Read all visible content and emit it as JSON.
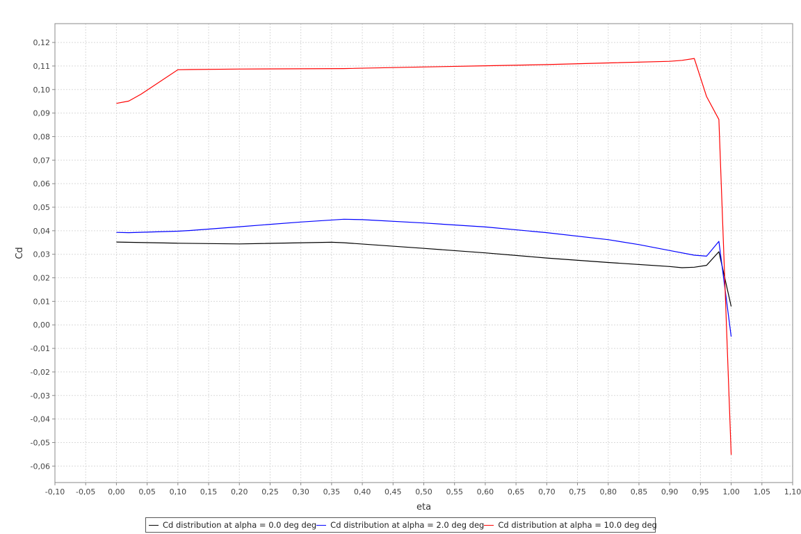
{
  "chart_data": {
    "type": "line",
    "title": "",
    "xlabel": "eta",
    "ylabel": "Cd",
    "xlim": [
      -0.1,
      1.1
    ],
    "ylim": [
      -0.067,
      0.128
    ],
    "x_ticks": [
      "-0,10",
      "-0,05",
      "0,00",
      "0,05",
      "0,10",
      "0,15",
      "0,20",
      "0,25",
      "0,30",
      "0,35",
      "0,40",
      "0,45",
      "0,50",
      "0,55",
      "0,60",
      "0,65",
      "0,70",
      "0,75",
      "0,80",
      "0,85",
      "0,90",
      "0,95",
      "1,00",
      "1,05",
      "1,10"
    ],
    "x_tick_values": [
      -0.1,
      -0.05,
      0.0,
      0.05,
      0.1,
      0.15,
      0.2,
      0.25,
      0.3,
      0.35,
      0.4,
      0.45,
      0.5,
      0.55,
      0.6,
      0.65,
      0.7,
      0.75,
      0.8,
      0.85,
      0.9,
      0.95,
      1.0,
      1.05,
      1.1
    ],
    "y_ticks": [
      "0,12",
      "0,11",
      "0,10",
      "0,09",
      "0,08",
      "0,07",
      "0,06",
      "0,05",
      "0,04",
      "0,03",
      "0,02",
      "0,01",
      "0,00",
      "-0,01",
      "-0,02",
      "-0,03",
      "-0,04",
      "-0,05",
      "-0,06"
    ],
    "y_tick_values": [
      0.12,
      0.11,
      0.1,
      0.09,
      0.08,
      0.07,
      0.06,
      0.05,
      0.04,
      0.03,
      0.02,
      0.01,
      0.0,
      -0.01,
      -0.02,
      -0.03,
      -0.04,
      -0.05,
      -0.06
    ],
    "grid": true,
    "legend_position": "bottom",
    "series": [
      {
        "name": "Cd distribution at alpha = 0.0 deg deg",
        "color": "#000000",
        "x": [
          0.0,
          0.1,
          0.2,
          0.35,
          0.37,
          0.5,
          0.6,
          0.7,
          0.8,
          0.9,
          0.92,
          0.94,
          0.96,
          0.98,
          1.0
        ],
        "y": [
          0.0352,
          0.0347,
          0.0344,
          0.0351,
          0.0349,
          0.0325,
          0.0306,
          0.0284,
          0.0265,
          0.0248,
          0.0243,
          0.0245,
          0.0253,
          0.0311,
          0.0078
        ]
      },
      {
        "name": "Cd distribution at alpha = 2.0 deg deg",
        "color": "#0000ff",
        "x": [
          0.0,
          0.02,
          0.1,
          0.12,
          0.2,
          0.3,
          0.37,
          0.4,
          0.5,
          0.6,
          0.7,
          0.8,
          0.85,
          0.9,
          0.94,
          0.96,
          0.98,
          1.0
        ],
        "y": [
          0.0393,
          0.0392,
          0.0398,
          0.0401,
          0.0417,
          0.0437,
          0.0449,
          0.0447,
          0.0433,
          0.0416,
          0.0392,
          0.0362,
          0.0341,
          0.0316,
          0.0296,
          0.0292,
          0.0355,
          -0.005
        ]
      },
      {
        "name": "Cd distribution at alpha = 10.0 deg deg",
        "color": "#ff0000",
        "x": [
          0.0,
          0.02,
          0.04,
          0.1,
          0.12,
          0.2,
          0.37,
          0.5,
          0.6,
          0.7,
          0.8,
          0.9,
          0.92,
          0.94,
          0.96,
          0.98,
          1.0
        ],
        "y": [
          0.0941,
          0.0951,
          0.098,
          0.1084,
          0.1085,
          0.1087,
          0.1089,
          0.1096,
          0.1101,
          0.1106,
          0.1113,
          0.112,
          0.1124,
          0.1132,
          0.097,
          0.0873,
          -0.0552
        ]
      }
    ]
  }
}
